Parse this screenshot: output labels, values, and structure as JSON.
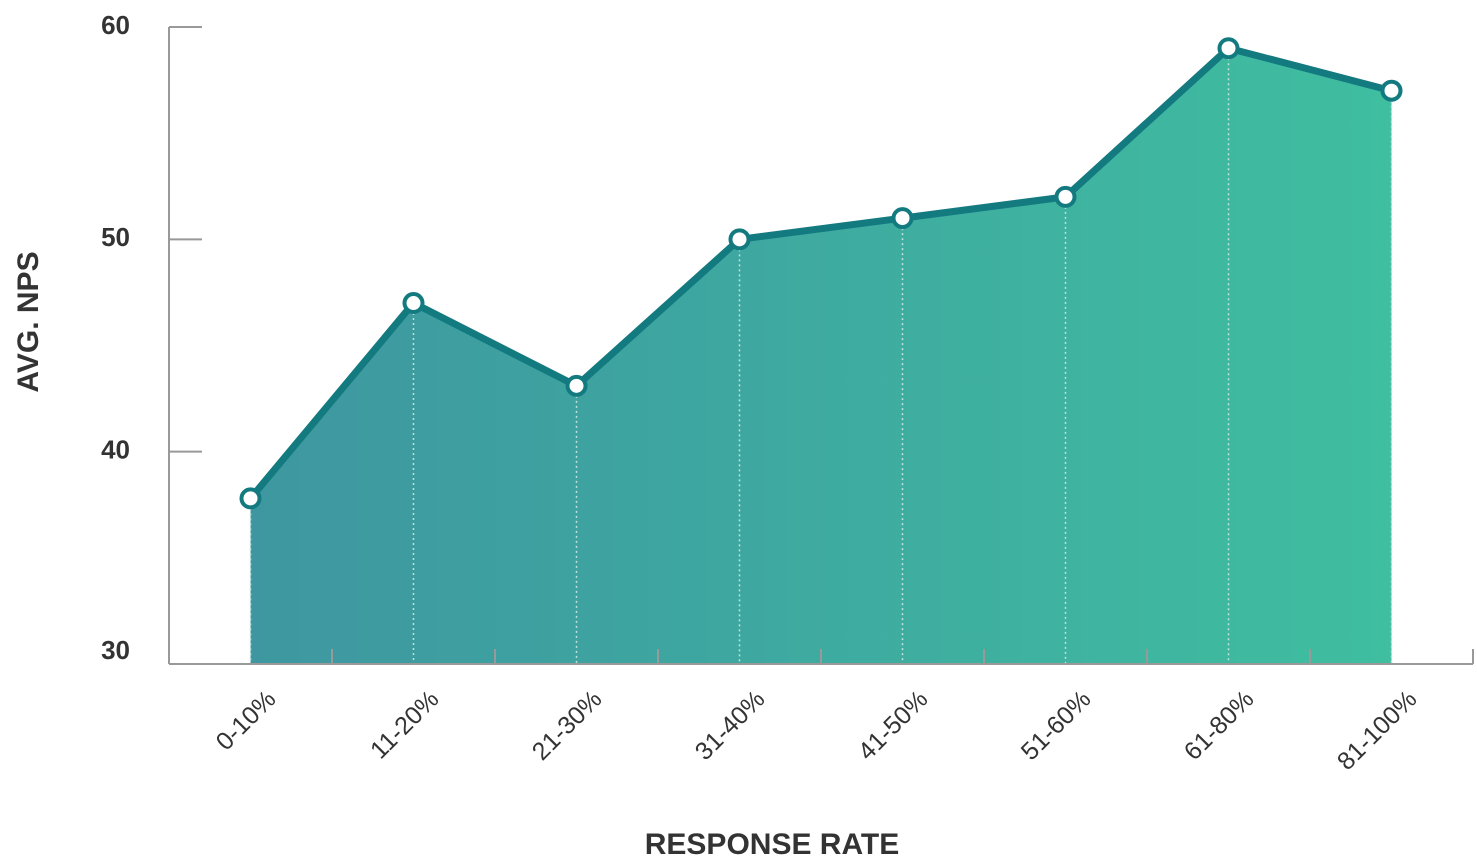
{
  "chart_data": {
    "type": "line",
    "x_label": "RESPONSE RATE",
    "y_label": "AVG. NPS",
    "categories": [
      "0-10%",
      "11-20%",
      "21-30%",
      "31-40%",
      "41-50%",
      "51-60%",
      "61-80%",
      "81-100%"
    ],
    "values": [
      37.8,
      47,
      43.1,
      50,
      51,
      52,
      59,
      57
    ],
    "color": "#137a80",
    "fill_gradient": [
      "#3e97a0",
      "#3fbea0"
    ],
    "ylim": [
      30,
      60
    ],
    "yticks": [
      30,
      40,
      50,
      60
    ],
    "grid": false
  }
}
